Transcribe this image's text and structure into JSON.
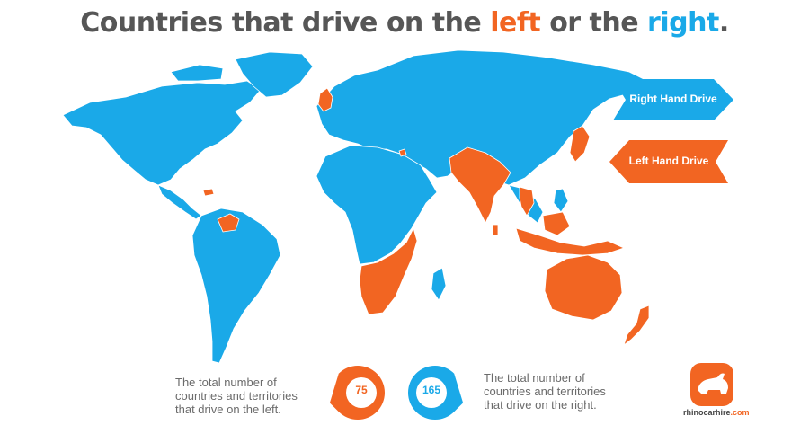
{
  "title": {
    "part1": "Countries that drive on the ",
    "left": "left",
    "part2": " or the ",
    "right": "right",
    "end": "."
  },
  "legend": {
    "rhd": "Right Hand Drive",
    "lhd": "Left Hand Drive"
  },
  "colors": {
    "rhd": "#1aa9e8",
    "lhd": "#f26522",
    "text": "#565656"
  },
  "stats": {
    "left_text": [
      "The total number of",
      "countries and territories",
      "that drive on the left."
    ],
    "left_count": "75",
    "right_count": "165",
    "right_text": [
      "The total number of",
      "countries and territories",
      "that drive on the right."
    ]
  },
  "logo": {
    "name": "rhinocarhire",
    "suffix": ".com"
  }
}
